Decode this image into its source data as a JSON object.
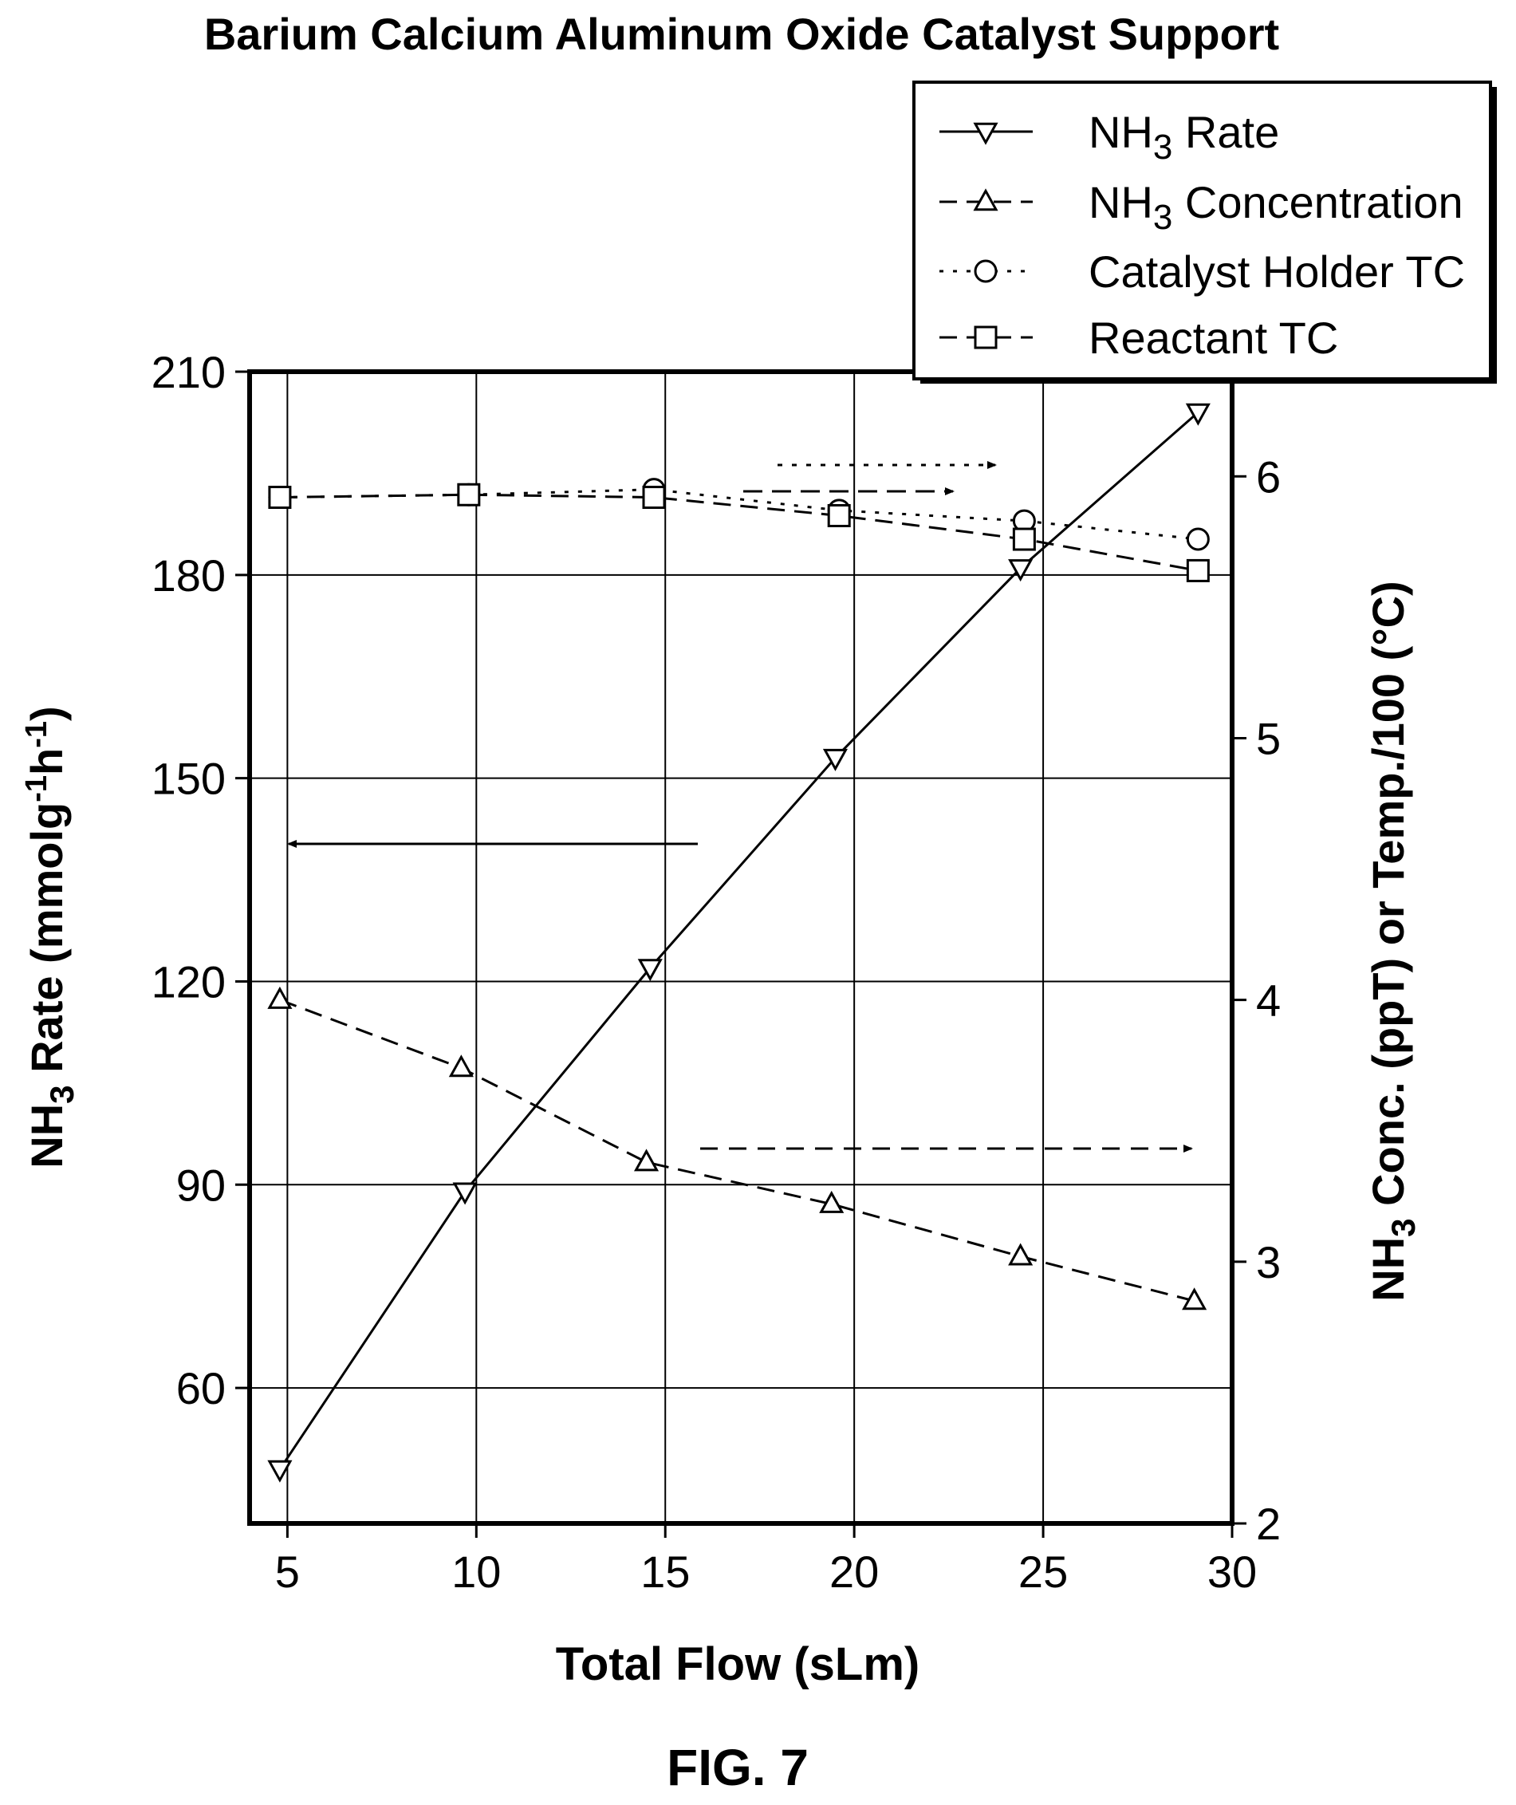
{
  "chart_data": {
    "type": "line",
    "title": "Barium Calcium Aluminum Oxide Catalyst Support",
    "figure_label": "FIG. 7",
    "xlabel": "Total Flow (sLm)",
    "ylabel_left": {
      "main": "NH",
      "sub": "3",
      "rest": " Rate (mmolg",
      "sup1": "-1",
      "mid": "h",
      "sup2": "-1",
      "end": ")"
    },
    "ylabel_right": {
      "main": "NH",
      "sub": "3",
      "rest": " Conc. (ppT) or Temp./100 (°C)"
    },
    "xlim": [
      4,
      30
    ],
    "ylim_left": [
      40,
      210
    ],
    "ylim_right": [
      2,
      6.4
    ],
    "x_ticks": [
      "5",
      "10",
      "15",
      "20",
      "25",
      "30"
    ],
    "y_ticks_left": [
      "60",
      "90",
      "120",
      "150",
      "180",
      "210"
    ],
    "y_ticks_right": [
      "2",
      "3",
      "4",
      "5",
      "6"
    ],
    "grid": true,
    "legend_position": "top-right",
    "series": [
      {
        "name": "NH3 Rate",
        "legend": {
          "main": "NH",
          "sub": "3",
          "rest": " Rate"
        },
        "axis": "left",
        "marker": "triangle-down",
        "linestyle": "solid",
        "x": [
          4.8,
          9.7,
          14.6,
          19.5,
          24.4,
          29.1
        ],
        "y": [
          48,
          89,
          122,
          153,
          181,
          204
        ]
      },
      {
        "name": "NH3 Concentration",
        "legend": {
          "main": "NH",
          "sub": "3",
          "rest": " Concentration"
        },
        "axis": "right",
        "marker": "triangle-up",
        "linestyle": "dashed",
        "x": [
          4.8,
          9.6,
          14.5,
          19.4,
          24.4,
          29.0
        ],
        "y": [
          4.0,
          3.74,
          3.38,
          3.22,
          3.02,
          2.85
        ]
      },
      {
        "name": "Catalyst Holder TC",
        "legend": {
          "main": "Catalyst Holder TC",
          "sub": "",
          "rest": ""
        },
        "axis": "right",
        "marker": "circle",
        "linestyle": "dotted",
        "x": [
          4.8,
          9.8,
          14.7,
          19.6,
          24.5,
          29.1
        ],
        "y": [
          5.92,
          5.93,
          5.95,
          5.87,
          5.83,
          5.76
        ]
      },
      {
        "name": "Reactant TC",
        "legend": {
          "main": "Reactant TC",
          "sub": "",
          "rest": ""
        },
        "axis": "right",
        "marker": "square",
        "linestyle": "dashed",
        "x": [
          4.8,
          9.8,
          14.7,
          19.6,
          24.5,
          29.1
        ],
        "y": [
          5.92,
          5.93,
          5.92,
          5.85,
          5.76,
          5.64
        ]
      }
    ]
  }
}
